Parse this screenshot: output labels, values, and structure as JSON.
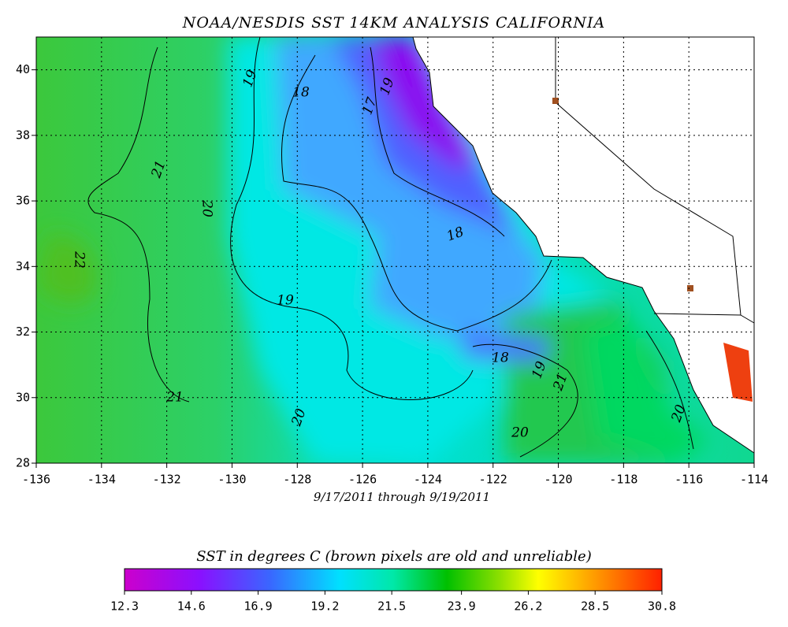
{
  "title": "NOAA/NESDIS SST 14KM ANALYSIS CALIFORNIA",
  "date_range": "9/17/2011 through 9/19/2011",
  "map": {
    "lonlim": [
      -136,
      -114
    ],
    "latlim": [
      28,
      41
    ],
    "lon_ticks": [
      -136,
      -134,
      -132,
      -130,
      -128,
      -126,
      -124,
      -122,
      -120,
      -118,
      -116,
      -114
    ],
    "lat_ticks": [
      28,
      30,
      32,
      34,
      36,
      38,
      40
    ],
    "contour_labels": [
      "19",
      "18",
      "17",
      "19",
      "21",
      "20",
      "22",
      "18",
      "19",
      "18",
      "19",
      "21",
      "21",
      "20",
      "20",
      "20"
    ]
  },
  "colorbar": {
    "title": "SST in degrees C (brown pixels are old and unreliable)",
    "lim": [
      12.3,
      30.8
    ],
    "ticks": [
      12.3,
      14.6,
      16.9,
      19.2,
      21.5,
      23.9,
      26.2,
      28.5,
      30.8
    ]
  }
}
